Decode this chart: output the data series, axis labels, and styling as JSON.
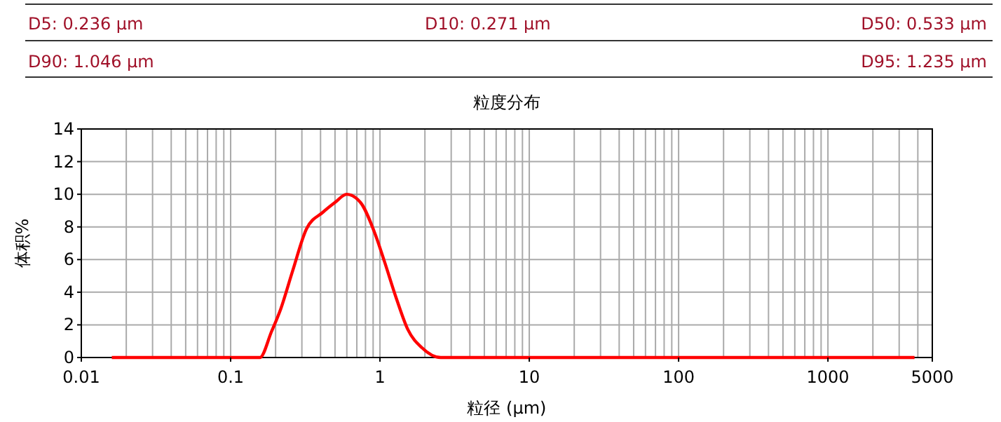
{
  "chart_data": {
    "type": "line",
    "title": "粒度分布",
    "xlabel": "粒径 (μm)",
    "ylabel": "体积%",
    "annotations": [
      "D5:  0.236 μm",
      "D10:  0.271 μm",
      "D50:  0.533 μm",
      "D90:  1.046 μm",
      "D95:  1.235 μm"
    ],
    "series": [
      {
        "color": "#ff0000",
        "x": [
          0.016,
          0.157,
          0.188,
          0.217,
          0.26,
          0.323,
          0.415,
          0.5,
          0.598,
          0.74,
          0.925,
          1.07,
          1.29,
          1.54,
          1.91,
          2.55,
          3800
        ],
        "values": [
          0,
          0,
          1.6,
          3.0,
          5.3,
          7.9,
          8.9,
          9.5,
          10.0,
          9.5,
          7.6,
          5.9,
          3.6,
          1.7,
          0.6,
          0,
          0
        ]
      }
    ],
    "xlim": [
      0.01,
      5000
    ],
    "xticks": [
      0.01,
      0.1,
      1,
      10,
      100,
      1000,
      5000
    ],
    "ylim": [
      0,
      14
    ],
    "yticks": [
      0,
      2,
      4,
      6,
      8,
      10,
      12,
      14
    ],
    "log": "x",
    "grid": true,
    "marker": "none",
    "line_style": "solid"
  }
}
